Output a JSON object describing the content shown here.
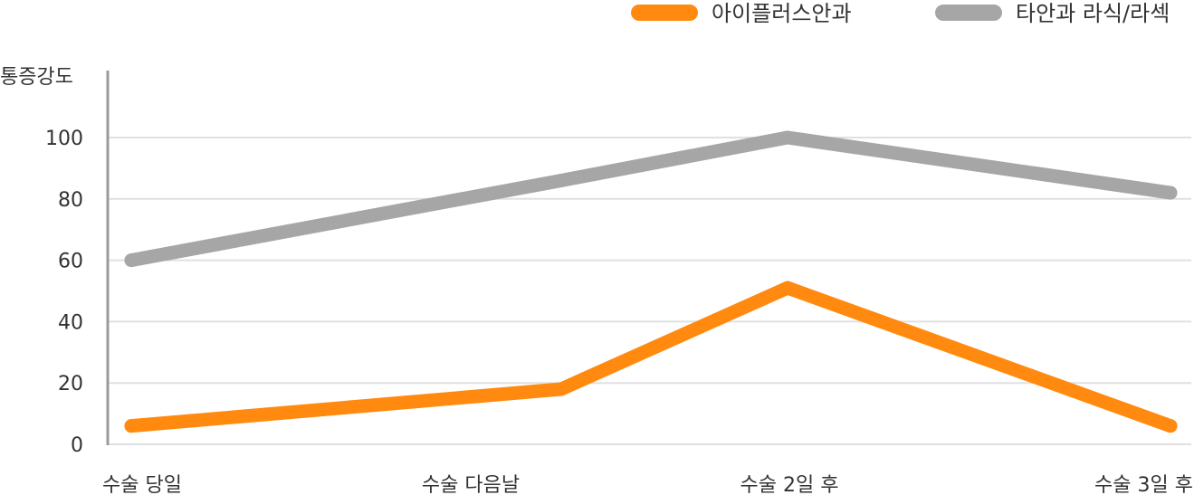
{
  "chart_data": {
    "type": "line",
    "ylabel": "통증강도",
    "ylim": [
      0,
      100
    ],
    "yticks": [
      0,
      20,
      40,
      60,
      80,
      100
    ],
    "grid": true,
    "legend_position": "top-right",
    "categories": [
      "수술 당일",
      "수술 다음날",
      "수술 2일 후",
      "수술 3일 후"
    ],
    "series": [
      {
        "name": "아이플러스안과",
        "color": "#ff8a0f",
        "values": [
          6,
          18,
          51,
          6
        ]
      },
      {
        "name": "타안과 라식/라섹",
        "color": "#a6a6a6",
        "values": [
          60,
          86,
          100,
          82
        ]
      }
    ]
  }
}
